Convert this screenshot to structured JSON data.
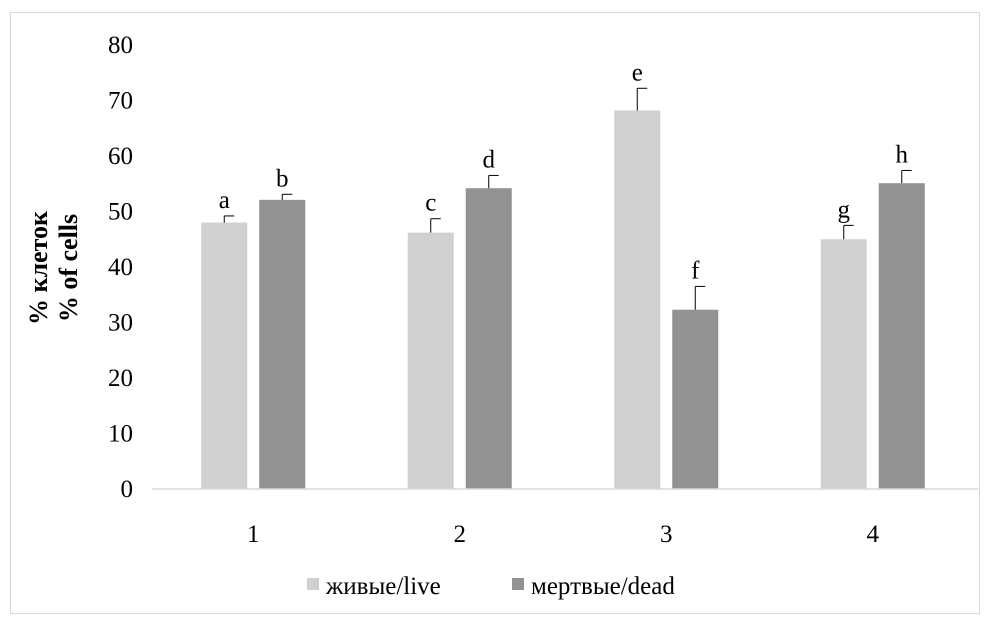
{
  "chart_data": {
    "type": "bar",
    "ylabel_lines": [
      "% клеток",
      "% of cells"
    ],
    "ylim": [
      0,
      80
    ],
    "yticks": [
      "0",
      "10",
      "20",
      "30",
      "40",
      "50",
      "60",
      "70",
      "80"
    ],
    "grid": false,
    "legend_position": "bottom",
    "categories": [
      "1",
      "2",
      "3",
      "4"
    ],
    "series": [
      {
        "name": "живые/live",
        "color": "#d0d0d0",
        "values": [
          48,
          46.2,
          68.2,
          45
        ],
        "errors": [
          1.2,
          2.5,
          4,
          2.5
        ],
        "letters": [
          "a",
          "c",
          "e",
          "g"
        ]
      },
      {
        "name": "мертвые/dead",
        "color": "#929292",
        "values": [
          52.1,
          54.2,
          32.3,
          55.1
        ],
        "errors": [
          1.0,
          2.3,
          4.2,
          2.3
        ],
        "letters": [
          "b",
          "d",
          "f",
          "h"
        ]
      }
    ]
  }
}
